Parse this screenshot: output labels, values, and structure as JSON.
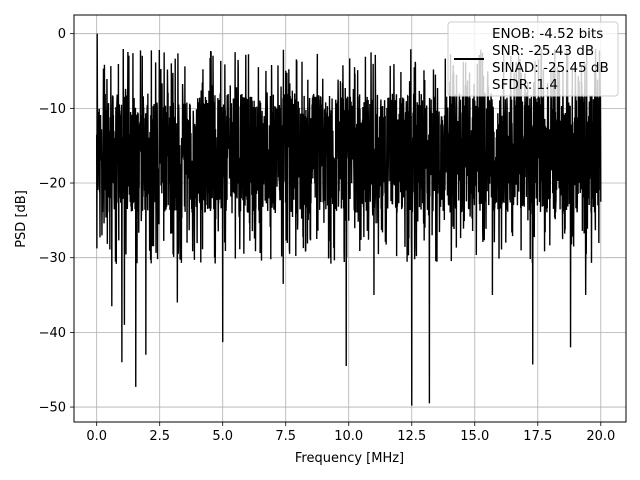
{
  "chart_data": {
    "type": "line",
    "title": "",
    "xlabel": "Frequency [MHz]",
    "ylabel": "PSD [dB]",
    "xlim": [
      -0.9,
      21.0
    ],
    "ylim": [
      -52.0,
      2.5
    ],
    "xticks": [
      0.0,
      2.5,
      5.0,
      7.5,
      10.0,
      12.5,
      15.0,
      17.5,
      20.0
    ],
    "xtick_labels": [
      "0.0",
      "2.5",
      "5.0",
      "7.5",
      "10.0",
      "12.5",
      "15.0",
      "17.5",
      "20.0"
    ],
    "yticks": [
      0,
      -10,
      -20,
      -30,
      -40,
      -50
    ],
    "ytick_labels": [
      "0",
      "−10",
      "−20",
      "−30",
      "−40",
      "−50"
    ],
    "grid": true,
    "legend_position": "top-right",
    "series": [
      {
        "name": "ENOB: -4.52 bits\nSNR: -25.43 dB\nSINAD: -25.45 dB\nSFDR: 1.4",
        "color": "#000000",
        "x_range": [
          0.0,
          20.0
        ],
        "envelope_approx": {
          "band_upper_db": -8,
          "band_lower_db": -24,
          "peak_max_db": -2,
          "typical_trough_db": -31
        },
        "notable_points": [
          {
            "x": 0.02,
            "y": 0.0
          },
          {
            "x": 0.6,
            "y": -36.5
          },
          {
            "x": 1.0,
            "y": -44.0
          },
          {
            "x": 1.1,
            "y": -39.0
          },
          {
            "x": 1.55,
            "y": -47.3
          },
          {
            "x": 1.95,
            "y": -43.0
          },
          {
            "x": 3.2,
            "y": -36.0
          },
          {
            "x": 5.0,
            "y": -41.3
          },
          {
            "x": 7.4,
            "y": -33.5
          },
          {
            "x": 9.9,
            "y": -44.5
          },
          {
            "x": 11.0,
            "y": -35.0
          },
          {
            "x": 12.5,
            "y": -49.8
          },
          {
            "x": 13.2,
            "y": -49.5
          },
          {
            "x": 15.7,
            "y": -35.0
          },
          {
            "x": 17.3,
            "y": -44.3
          },
          {
            "x": 18.8,
            "y": -42.0
          },
          {
            "x": 19.4,
            "y": -35.0
          }
        ]
      }
    ]
  }
}
